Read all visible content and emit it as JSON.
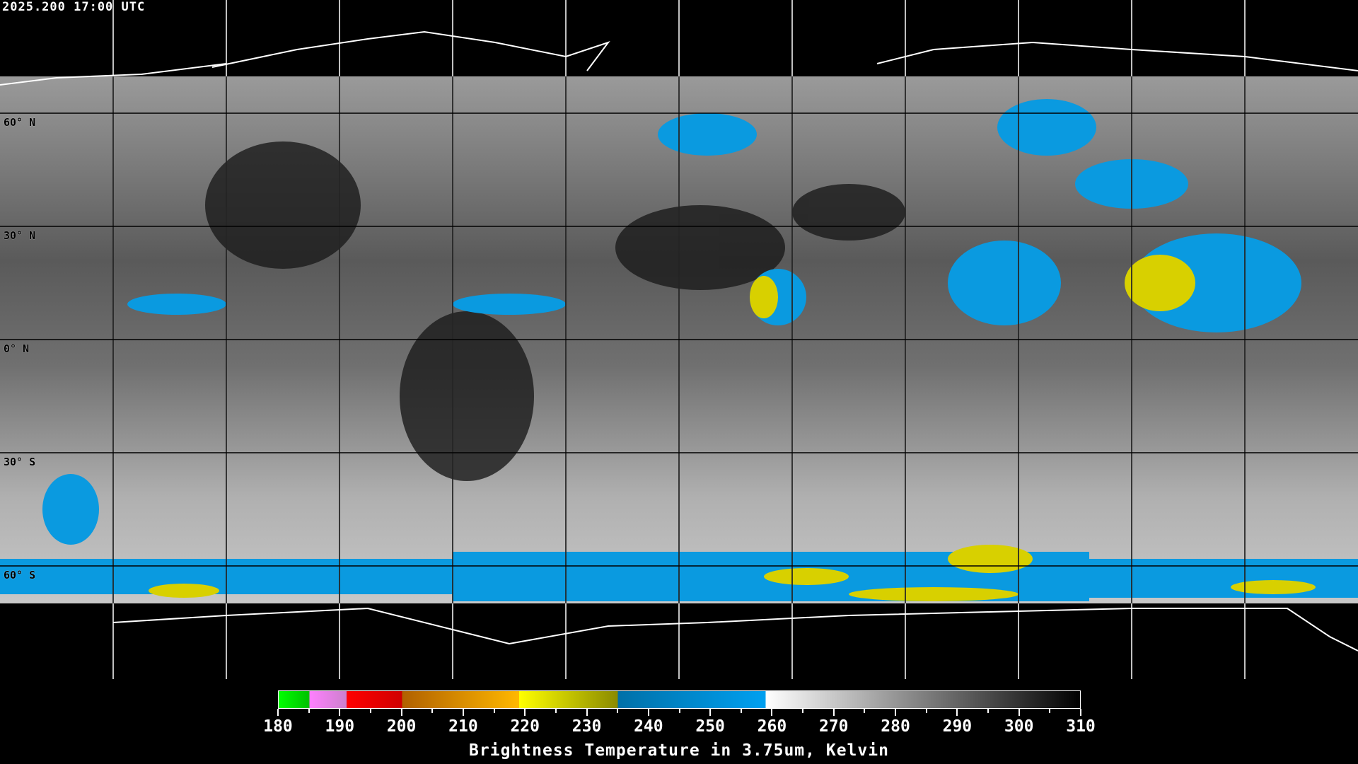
{
  "timestamp": "2025.200 17:00 UTC",
  "map": {
    "projection": "equirectangular",
    "grid_longitudes_step_deg": 30,
    "grid_latitudes": [
      60,
      30,
      0,
      -30,
      -60
    ],
    "lat_labels": [
      "60° N",
      "30° N",
      "0° N",
      "30° S",
      "60° S"
    ],
    "coastline_color": "#000000",
    "polar_coastline_color": "#ffffff",
    "grid_color_on_image": "#000000",
    "grid_color_on_background": "#ffffff"
  },
  "colorbar": {
    "title": "Brightness Temperature in 3.75um, Kelvin",
    "min": 180,
    "max": 310,
    "tick_labels": [
      "180",
      "190",
      "200",
      "210",
      "220",
      "230",
      "240",
      "250",
      "260",
      "270",
      "280",
      "290",
      "300",
      "310"
    ],
    "minor_tick_step": 5,
    "segments": [
      {
        "from": 180,
        "to": 185,
        "start": "#00ff00",
        "end": "#00c000"
      },
      {
        "from": 185,
        "to": 191,
        "start": "#ff80ff",
        "end": "#cc80cc"
      },
      {
        "from": 191,
        "to": 200,
        "start": "#ff0000",
        "end": "#d00000"
      },
      {
        "from": 200,
        "to": 219,
        "start": "#b06000",
        "end": "#ffb800"
      },
      {
        "from": 219,
        "to": 235,
        "start": "#ffff00",
        "end": "#8a8a00"
      },
      {
        "from": 235,
        "to": 259,
        "start": "#0070a8",
        "end": "#00a0f0"
      },
      {
        "from": 259,
        "to": 310,
        "start": "#ffffff",
        "end": "#000000"
      }
    ]
  }
}
